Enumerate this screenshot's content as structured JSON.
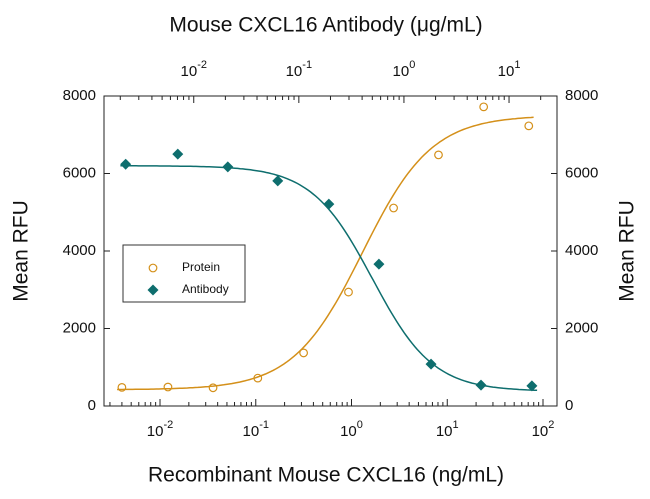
{
  "chart_data": {
    "type": "scatter",
    "title": "Mouse CXCL16 Antibody (μg/mL)",
    "x_label": "Recombinant Mouse CXCL16 (ng/mL)",
    "y_label": "Mean RFU",
    "y2_label": "Mean RFU",
    "x_scale": "log",
    "x2_scale": "log",
    "xlim": [
      0.0026,
      140
    ],
    "xticks": [
      {
        "value": 0.01,
        "label": "10-2"
      },
      {
        "value": 0.1,
        "label": "10-1"
      },
      {
        "value": 1,
        "label": "100"
      },
      {
        "value": 10,
        "label": "101"
      },
      {
        "value": 100,
        "label": "102"
      }
    ],
    "x2lim": [
      0.0014,
      28.6
    ],
    "x2ticks": [
      {
        "value": 0.01,
        "label": "10-2"
      },
      {
        "value": 0.1,
        "label": "10-1"
      },
      {
        "value": 1,
        "label": "100"
      },
      {
        "value": 10,
        "label": "101"
      }
    ],
    "ylim": [
      0,
      8000
    ],
    "yticks": [
      0,
      2000,
      4000,
      6000,
      8000
    ],
    "y2lim": [
      0,
      8000
    ],
    "y2ticks": [
      0,
      2000,
      4000,
      6000,
      8000
    ],
    "legend": "left",
    "series": [
      {
        "name": "Protein",
        "color": "#d4901a",
        "marker": "open-circle",
        "axis": "x",
        "x": [
          0.004,
          0.0121,
          0.0358,
          0.105,
          0.316,
          0.93,
          2.75,
          8.1,
          24,
          71
        ],
        "values": [
          480,
          490,
          470,
          720,
          1370,
          2940,
          5110,
          6480,
          7720,
          7230
        ],
        "fit": {
          "bottom": 420,
          "top": 7500,
          "ec50": 1.3,
          "hill": 1.2
        }
      },
      {
        "name": "Antibody",
        "color": "#0e6e6e",
        "marker": "diamond",
        "axis": "x2",
        "x": [
          0.00225,
          0.00705,
          0.0211,
          0.063,
          0.193,
          0.578,
          1.81,
          5.41,
          16.5
        ],
        "values": [
          6240,
          6500,
          6170,
          5810,
          5210,
          3660,
          1080,
          540,
          520
        ],
        "fit": {
          "bottom": 380,
          "top": 6200,
          "ec50": 0.5,
          "hill": -1.5
        }
      }
    ]
  }
}
